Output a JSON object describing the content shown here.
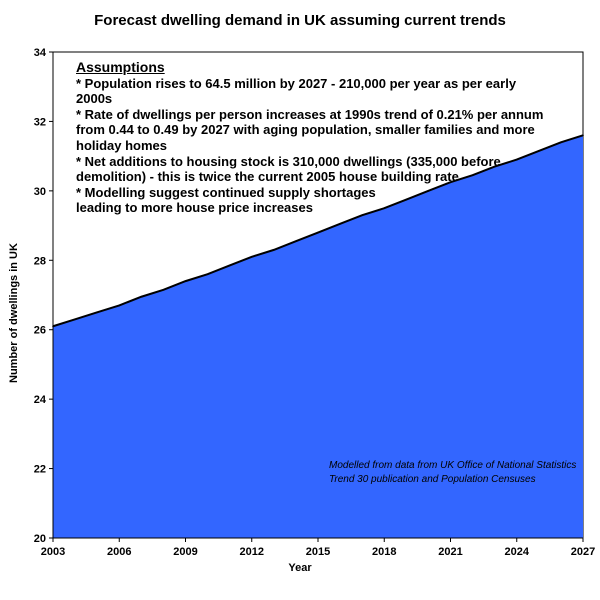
{
  "chart_data": {
    "type": "area",
    "title": "Forecast dwelling demand in UK assuming current trends",
    "xlabel": "Year",
    "ylabel": "Number of dwellings in UK",
    "x_range": [
      2003,
      2027
    ],
    "ylim": [
      20,
      34
    ],
    "x_ticks": [
      "2003",
      "2006",
      "2009",
      "2012",
      "2015",
      "2018",
      "2021",
      "2024",
      "2027"
    ],
    "y_ticks": [
      "20",
      "22",
      "24",
      "26",
      "28",
      "30",
      "32",
      "34"
    ],
    "fill_color": "#3366ff",
    "x": [
      2003,
      2004,
      2005,
      2006,
      2007,
      2008,
      2009,
      2010,
      2011,
      2012,
      2013,
      2014,
      2015,
      2016,
      2017,
      2018,
      2019,
      2020,
      2021,
      2022,
      2023,
      2024,
      2025,
      2026,
      2027
    ],
    "values": [
      26.1,
      26.3,
      26.5,
      26.7,
      26.95,
      27.15,
      27.4,
      27.6,
      27.85,
      28.1,
      28.3,
      28.55,
      28.8,
      29.05,
      29.3,
      29.5,
      29.75,
      30.0,
      30.25,
      30.45,
      30.7,
      30.9,
      31.15,
      31.4,
      31.6
    ]
  },
  "assumptions": {
    "heading": "Assumptions",
    "lines": [
      "* Population rises to 64.5 million by 2027 - 210,000 per year as per early 2000s",
      "* Rate of dwellings per person increases at 1990s trend of 0.21% per annum from 0.44 to 0.49 by 2027 with aging population, smaller families and more holiday homes",
      "* Net additions to housing stock is 310,000 dwellings (335,000 before demolition) - this is twice the current 2005 house building rate",
      "* Modelling suggest continued supply shortages",
      "leading to more house price increases"
    ]
  },
  "source_note": "Modelled from data from UK Office of National Statistics Trend 30 publication and Population Censuses"
}
